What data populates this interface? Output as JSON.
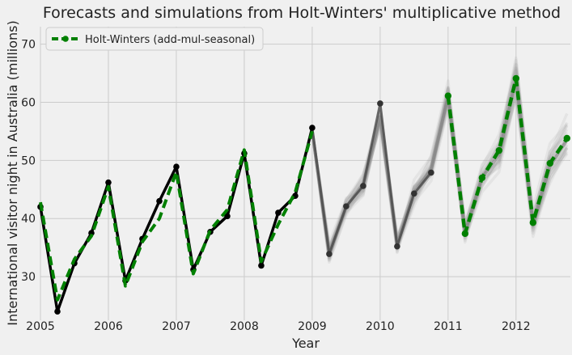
{
  "chart_data": {
    "type": "line",
    "title": "Forecasts and simulations from Holt-Winters' multiplicative method",
    "xlabel": "Year",
    "ylabel": "International visitor night in Australia (millions)",
    "xlim": [
      2005.0,
      2012.8
    ],
    "ylim": [
      22.5,
      73
    ],
    "x_ticks": [
      "2005",
      "2006",
      "2007",
      "2008",
      "2009",
      "2010",
      "2011",
      "2012"
    ],
    "y_ticks": [
      "30",
      "40",
      "50",
      "60",
      "70"
    ],
    "grid": true,
    "legend": {
      "position": "top-left",
      "entries": [
        "Holt-Winters (add-mul-seasonal)"
      ]
    },
    "colors": {
      "observed": "#000000",
      "fit": "#008000",
      "simulation": "#9a9a9a",
      "background": "#f0f0f0",
      "grid": "#cbcbcb"
    },
    "series": [
      {
        "role": "observed",
        "x": [
          2005.0,
          2005.25,
          2005.5,
          2005.75,
          2006.0,
          2006.25,
          2006.5,
          2006.75,
          2007.0,
          2007.25,
          2007.5,
          2007.75,
          2008.0,
          2008.25,
          2008.5,
          2008.75,
          2009.0,
          2009.25,
          2009.5,
          2009.75,
          2010.0,
          2010.25,
          2010.5,
          2010.75
        ],
        "y": [
          42.0,
          24.0,
          32.3,
          37.5,
          46.2,
          29.3,
          36.5,
          43.0,
          48.9,
          31.2,
          37.7,
          40.4,
          51.2,
          31.9,
          41.0,
          43.9,
          55.6,
          33.9,
          42.1,
          45.6,
          59.8,
          35.2,
          44.3,
          47.9
        ]
      },
      {
        "role": "fit",
        "name": "Holt-Winters (add-mul-seasonal)",
        "x": [
          2005.0,
          2005.25,
          2005.5,
          2005.75,
          2006.0,
          2006.25,
          2006.5,
          2006.75,
          2007.0,
          2007.25,
          2007.5,
          2007.75,
          2008.0,
          2008.25,
          2008.5,
          2008.75,
          2009.0
        ],
        "y": [
          42.8,
          26.0,
          33.0,
          37.0,
          45.5,
          28.4,
          36.0,
          40.0,
          48.0,
          30.5,
          38.0,
          41.5,
          51.8,
          32.6,
          39.0,
          44.5,
          55.0
        ]
      },
      {
        "role": "forecast",
        "name": "Holt-Winters (add-mul-seasonal)",
        "x": [
          2011.0,
          2011.25,
          2011.5,
          2011.75,
          2012.0,
          2012.25,
          2012.5,
          2012.75
        ],
        "y": [
          61.1,
          37.4,
          47.0,
          51.7,
          64.1,
          39.3,
          49.5,
          53.8
        ]
      },
      {
        "role": "simulation",
        "x": [
          2009.0,
          2009.25,
          2009.5,
          2009.75,
          2010.0,
          2010.25,
          2010.5,
          2010.75,
          2011.0,
          2011.25,
          2011.5,
          2011.75,
          2012.0,
          2012.25,
          2012.5,
          2012.75
        ],
        "y": [
          55.0,
          34.0,
          42.0,
          46.0,
          57.5,
          35.5,
          44.5,
          48.5,
          61.0,
          37.5,
          47.0,
          51.0,
          64.0,
          39.0,
          49.0,
          53.5
        ]
      }
    ]
  }
}
